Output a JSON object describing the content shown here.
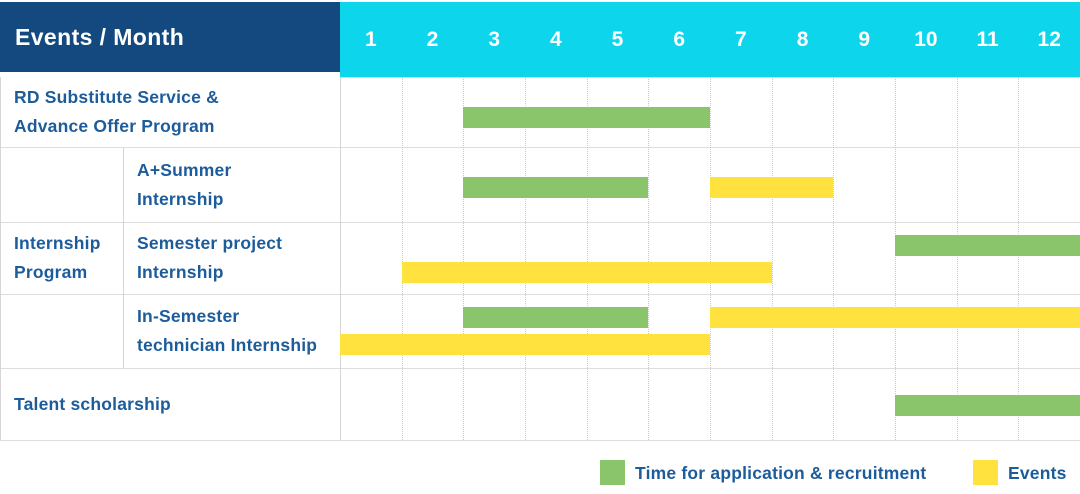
{
  "colors": {
    "header_navy": "#14497F",
    "header_cyan": "#0CD5EC",
    "application_green": "#8BC56B",
    "event_yellow": "#FFE23E",
    "label_blue": "#1D5C9B",
    "grid_gray": "#DEDEDE"
  },
  "chart_data": {
    "type": "gantt",
    "title": "",
    "corner_label": "Events / Month",
    "months": [
      "1",
      "2",
      "3",
      "4",
      "5",
      "6",
      "7",
      "8",
      "9",
      "10",
      "11",
      "12"
    ],
    "x_axis": {
      "label": "Month",
      "range": [
        1,
        12
      ],
      "grid": "dotted vertical lines per month"
    },
    "legend_position": "bottom-right",
    "group": {
      "label_lines": [
        "Internship",
        "Program"
      ],
      "first_row": 1,
      "last_row": 3
    },
    "rows": [
      {
        "id": "rd-substitute-service",
        "label_lines": [
          "RD Substitute Service &",
          "Advance Offer Program"
        ],
        "group_member": false,
        "bars": [
          {
            "series": "application",
            "start_month": 3,
            "end_month": 6,
            "lane": "center"
          }
        ]
      },
      {
        "id": "a-plus-summer-internship",
        "label_lines": [
          "A+Summer",
          "Internship"
        ],
        "group_member": true,
        "bars": [
          {
            "series": "application",
            "start_month": 3,
            "end_month": 5,
            "lane": "center"
          },
          {
            "series": "event",
            "start_month": 7,
            "end_month": 8,
            "lane": "center"
          }
        ]
      },
      {
        "id": "semester-project-internship",
        "label_lines": [
          "Semester project",
          "Internship"
        ],
        "group_member": true,
        "bars": [
          {
            "series": "application",
            "start_month": 10,
            "end_month": 12,
            "lane": "top"
          },
          {
            "series": "event",
            "start_month": 2,
            "end_month": 7,
            "lane": "bottom"
          }
        ]
      },
      {
        "id": "in-semester-technician-internship",
        "label_lines": [
          "In-Semester",
          "technician Internship"
        ],
        "group_member": true,
        "bars": [
          {
            "series": "application",
            "start_month": 3,
            "end_month": 5,
            "lane": "top"
          },
          {
            "series": "event",
            "start_month": 7,
            "end_month": 12,
            "lane": "top"
          },
          {
            "series": "event",
            "start_month": 1,
            "end_month": 6,
            "lane": "bottom"
          }
        ]
      },
      {
        "id": "talent-scholarship",
        "label_lines": [
          "Talent scholarship"
        ],
        "group_member": false,
        "bars": [
          {
            "series": "application",
            "start_month": 10,
            "end_month": 12,
            "lane": "center"
          }
        ]
      }
    ],
    "legend": [
      {
        "series": "application",
        "label": "Time for application & recruitment"
      },
      {
        "series": "event",
        "label": "Events"
      }
    ]
  }
}
